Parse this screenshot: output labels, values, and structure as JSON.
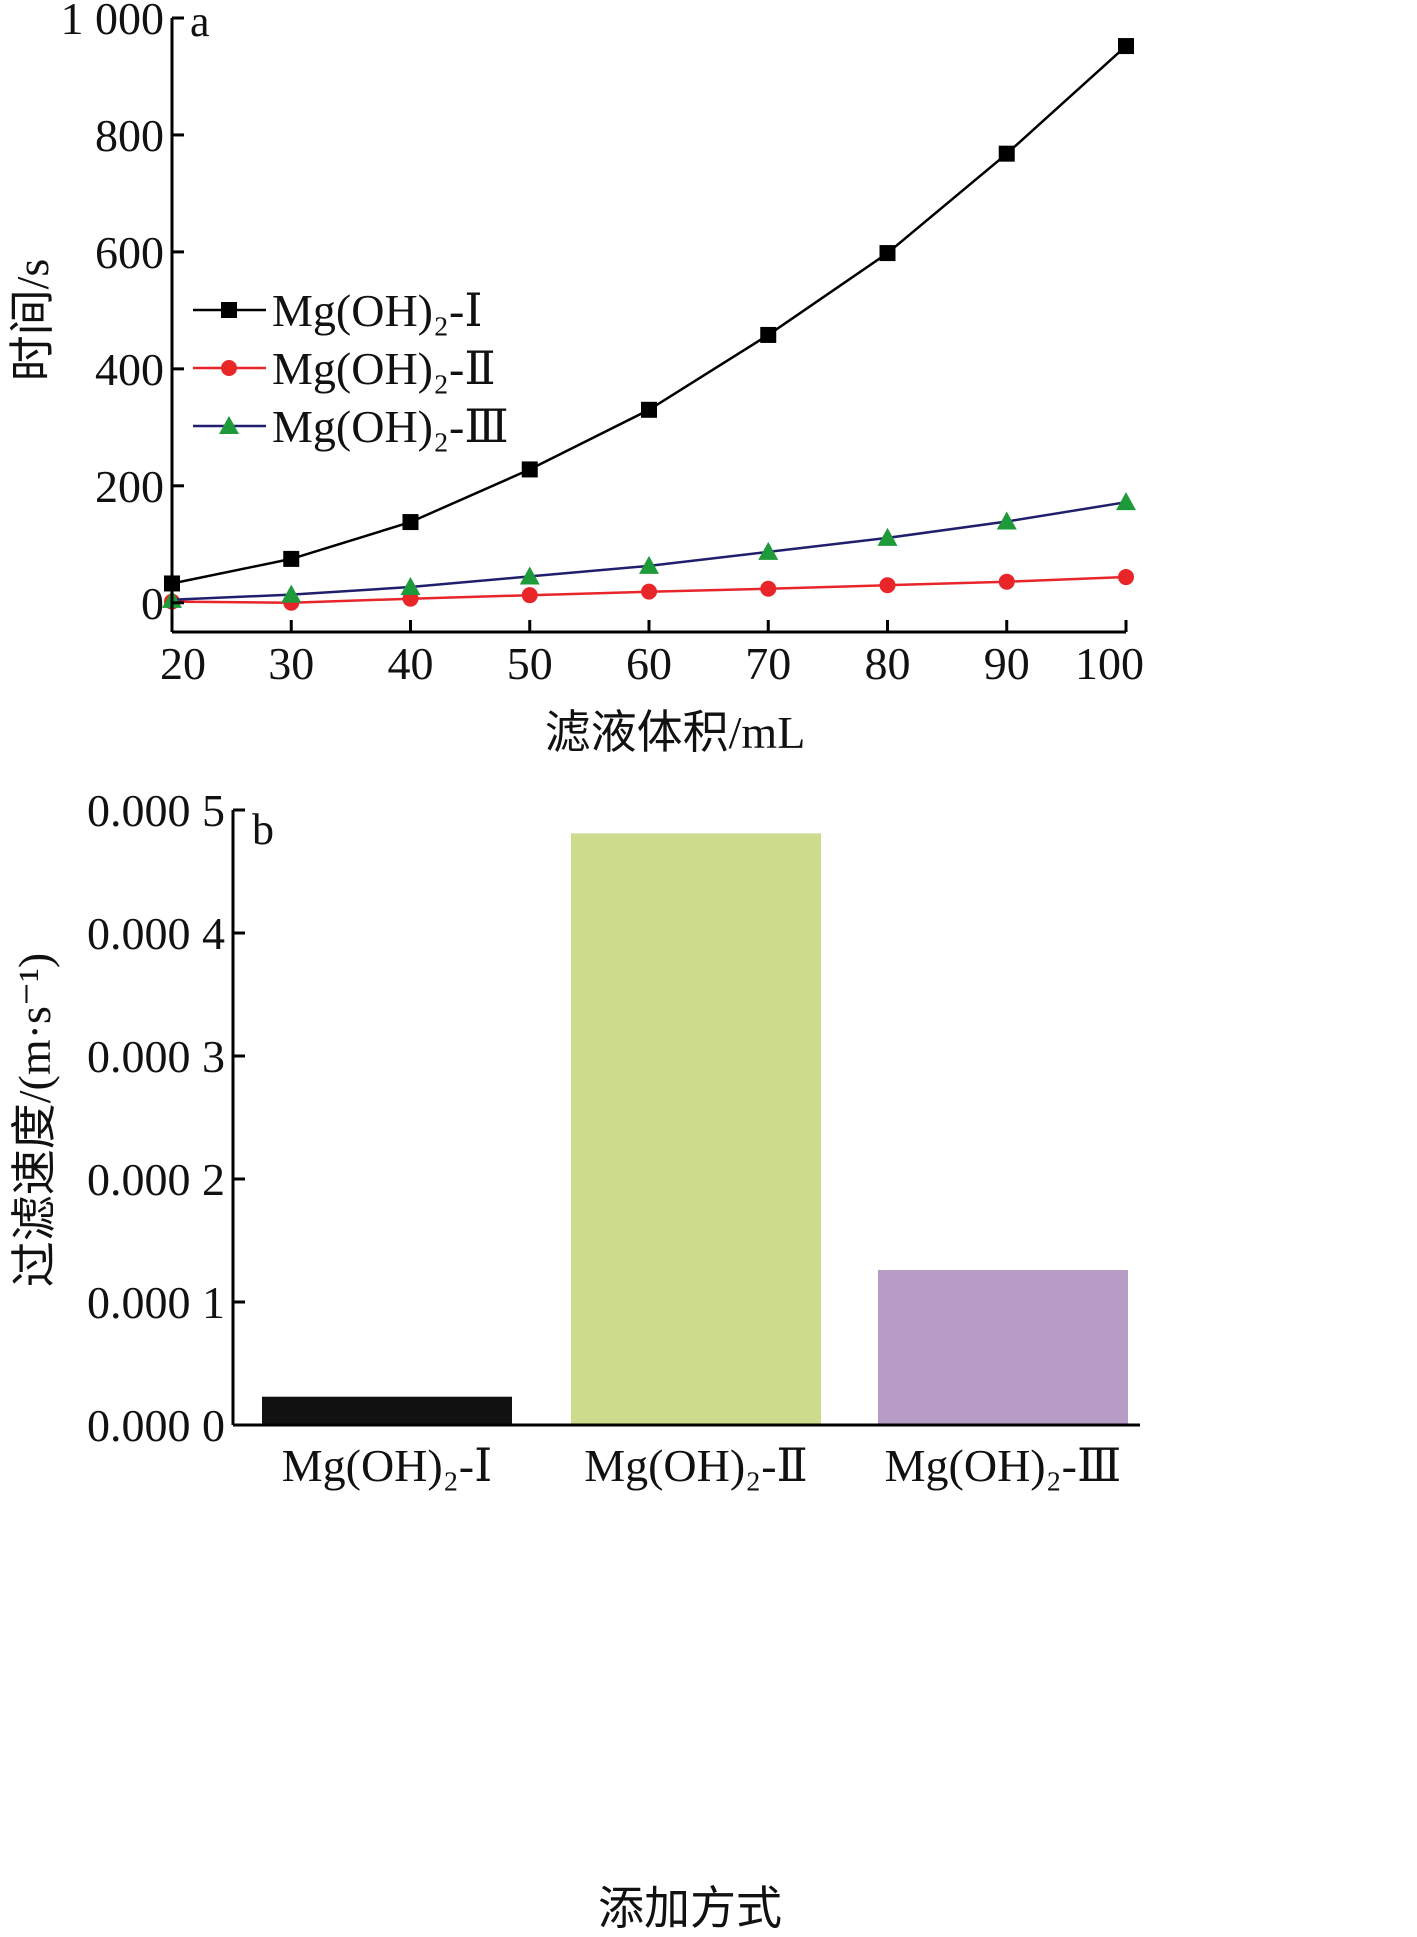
{
  "chart_data": [
    {
      "type": "line",
      "panel_label": "a",
      "xlabel": "滤液体积/mL",
      "ylabel": "时间/s",
      "xlim": [
        20,
        100
      ],
      "ylim": [
        -50,
        1000
      ],
      "x_ticks": [
        "20",
        "30",
        "40",
        "50",
        "60",
        "70",
        "80",
        "90",
        "100"
      ],
      "y_ticks": [
        "0",
        "200",
        "400",
        "600",
        "800",
        "1 000"
      ],
      "grid": false,
      "legend_position": "middle-left",
      "x": [
        20,
        30,
        40,
        50,
        60,
        70,
        80,
        90,
        100
      ],
      "series": [
        {
          "name": "Mg(OH)₂-Ⅰ",
          "color": "#000000",
          "marker": "square",
          "values": [
            33,
            75,
            138,
            228,
            330,
            458,
            598,
            768,
            952
          ]
        },
        {
          "name": "Mg(OH)₂-Ⅱ",
          "color": "#e8262a",
          "marker": "circle",
          "values": [
            2,
            0,
            7,
            13,
            19,
            24,
            30,
            36,
            44
          ]
        },
        {
          "name": "Mg(OH)₂-Ⅲ",
          "color": "#1f1f6e",
          "marker_color": "#1e9a3a",
          "marker": "triangle",
          "values": [
            5,
            14,
            27,
            45,
            63,
            87,
            111,
            139,
            172
          ]
        }
      ]
    },
    {
      "type": "bar",
      "panel_label": "b",
      "xlabel": "添加方式",
      "ylabel": "过滤速度/(m·s⁻¹)",
      "ylim": [
        0,
        0.0005
      ],
      "y_ticks": [
        "0.000 0",
        "0.000 1",
        "0.000 2",
        "0.000 3",
        "0.000 4",
        "0.000 5"
      ],
      "grid": false,
      "categories": [
        "Mg(OH)₂-Ⅰ",
        "Mg(OH)₂-Ⅱ",
        "Mg(OH)₂-Ⅲ"
      ],
      "values": [
        2.3e-05,
        0.000481,
        0.000126
      ],
      "colors": [
        "#111111",
        "#cbdd8c",
        "#b79dc6"
      ]
    }
  ]
}
